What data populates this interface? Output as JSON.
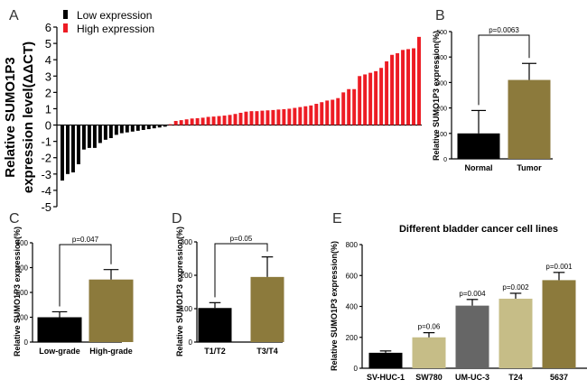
{
  "colors": {
    "black": "#000000",
    "red": "#ed1c24",
    "olive": "#8c7a3c",
    "gray": "#666666",
    "beige": "#c6bd87"
  },
  "chart_data": [
    {
      "panel": "A",
      "type": "bar",
      "ylabel": "Relative SUMO1P3 expression level(ΔΔCT)",
      "ylim": [
        -5,
        6
      ],
      "yticks": [
        "6",
        "5",
        "4",
        "3",
        "2",
        "1",
        "0",
        "-1",
        "-2",
        "-3",
        "-4",
        "-5"
      ],
      "legend": [
        "Low expression",
        "High expression"
      ],
      "series": [
        {
          "name": "Low expression",
          "color_key": "black",
          "values": [
            -3.4,
            -3.0,
            -2.9,
            -2.4,
            -1.5,
            -1.4,
            -1.4,
            -1.1,
            -0.9,
            -0.8,
            -0.6,
            -0.5,
            -0.45,
            -0.4,
            -0.35,
            -0.3,
            -0.25,
            -0.2,
            -0.15,
            -0.1
          ]
        },
        {
          "name": "High expression",
          "color_key": "red",
          "values": [
            0.05,
            0.25,
            0.3,
            0.35,
            0.4,
            0.42,
            0.45,
            0.5,
            0.52,
            0.55,
            0.58,
            0.62,
            0.68,
            0.75,
            0.82,
            0.85,
            0.85,
            0.88,
            0.9,
            0.92,
            0.95,
            0.97,
            1.0,
            1.05,
            1.1,
            1.15,
            1.2,
            1.3,
            1.4,
            1.5,
            1.55,
            1.65,
            2.0,
            2.2,
            2.2,
            3.0,
            3.1,
            3.2,
            3.3,
            3.5,
            3.9,
            4.3,
            4.4,
            4.6,
            4.65,
            4.7,
            5.4
          ]
        }
      ]
    },
    {
      "panel": "B",
      "type": "bar",
      "ylabel": "Relative SUMO1P3 expression(%)",
      "ylim": [
        0,
        500
      ],
      "yticks": [
        "0",
        "100",
        "200",
        "300",
        "400",
        "500"
      ],
      "categories": [
        "Normal",
        "Tumor"
      ],
      "values": [
        100,
        310
      ],
      "errors": [
        90,
        65
      ],
      "color_keys": [
        "black",
        "olive"
      ],
      "pvalue": "p=0.0063"
    },
    {
      "panel": "C",
      "type": "bar",
      "ylabel": "Relative SUMO1P3 expression(%)",
      "ylim": [
        0,
        400
      ],
      "yticks": [
        "0",
        "100",
        "200",
        "300",
        "400"
      ],
      "categories": [
        "Low-grade",
        "High-grade"
      ],
      "values": [
        100,
        252
      ],
      "errors": [
        22,
        40
      ],
      "color_keys": [
        "black",
        "olive"
      ],
      "pvalue": "p=0.047"
    },
    {
      "panel": "D",
      "type": "bar",
      "ylabel": "Relative SUMO1P3 expression(%)",
      "ylim": [
        0,
        300
      ],
      "yticks": [
        "0",
        "100",
        "200",
        "300"
      ],
      "categories": [
        "T1/T2",
        "T3/T4"
      ],
      "values": [
        102,
        195
      ],
      "errors": [
        16,
        60
      ],
      "color_keys": [
        "black",
        "olive"
      ],
      "pvalue": "p=0.05"
    },
    {
      "panel": "E",
      "type": "bar",
      "title": "Different bladder cancer cell lines",
      "ylabel": "Relative SUMO1P3 expression(%)",
      "ylim": [
        0,
        800
      ],
      "yticks": [
        "0",
        "200",
        "400",
        "600",
        "800"
      ],
      "categories": [
        "SV-HUC-1",
        "SW780",
        "UM-UC-3",
        "T24",
        "5637"
      ],
      "values": [
        100,
        200,
        405,
        450,
        570
      ],
      "errors": [
        12,
        30,
        40,
        35,
        50
      ],
      "color_keys": [
        "black",
        "beige",
        "gray",
        "beige",
        "olive"
      ],
      "pvalues": [
        "",
        "p=0.06",
        "p=0.004",
        "p=0.002",
        "p=0.001"
      ]
    }
  ]
}
